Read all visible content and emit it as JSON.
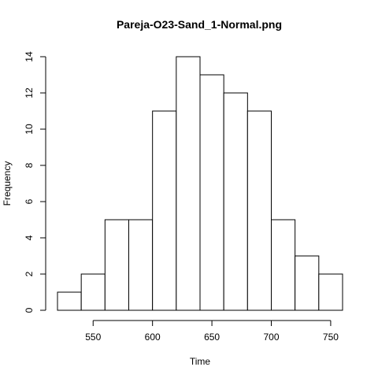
{
  "chart_data": {
    "type": "bar",
    "title": "Pareja-O23-Sand_1-Normal.png",
    "xlabel": "Time",
    "ylabel": "Frequency",
    "bins": [
      {
        "from": 520,
        "to": 540,
        "count": 1
      },
      {
        "from": 540,
        "to": 560,
        "count": 2
      },
      {
        "from": 560,
        "to": 580,
        "count": 5
      },
      {
        "from": 580,
        "to": 600,
        "count": 5
      },
      {
        "from": 600,
        "to": 620,
        "count": 11
      },
      {
        "from": 620,
        "to": 640,
        "count": 14
      },
      {
        "from": 640,
        "to": 660,
        "count": 13
      },
      {
        "from": 660,
        "to": 680,
        "count": 12
      },
      {
        "from": 680,
        "to": 700,
        "count": 11
      },
      {
        "from": 700,
        "to": 720,
        "count": 5
      },
      {
        "from": 720,
        "to": 740,
        "count": 3
      },
      {
        "from": 740,
        "to": 760,
        "count": 2
      }
    ],
    "xticks": [
      550,
      600,
      650,
      700,
      750
    ],
    "yticks": [
      0,
      2,
      4,
      6,
      8,
      10,
      12,
      14
    ],
    "xlim": [
      520,
      760
    ],
    "ylim": [
      0,
      14
    ],
    "grid": false
  }
}
